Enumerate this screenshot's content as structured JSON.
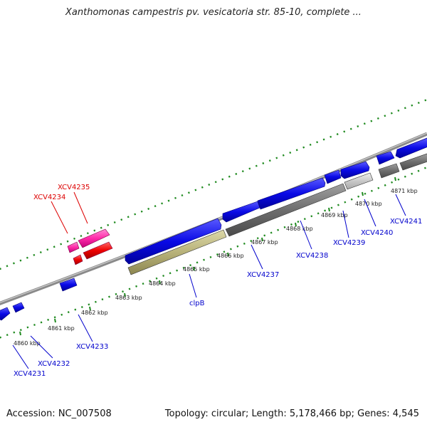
{
  "title": "Xanthomonas campestris pv. vesicatoria str. 85-10, complete ...",
  "footer": {
    "accession": "Accession: NC_007508",
    "summary": "Topology: circular; Length: 5,178,466 bp; Genes: 4,545"
  },
  "colors": {
    "forward_gene": "#0a0ae6",
    "reverse_gene": "#6e6e6e",
    "clpB_gene": "#b8b27a",
    "pseudo_gene": "#c8c8c8",
    "rna_magenta": "#ff2aa8",
    "rna_red": "#ee0000",
    "backbone": "#8a8a8a",
    "tick": "#1f8a1f",
    "label_blue": "#0000cc",
    "label_red": "#dd0000"
  },
  "scale": {
    "ticks": [
      {
        "label": "4860 kbp"
      },
      {
        "label": "4861 kbp"
      },
      {
        "label": "4862 kbp"
      },
      {
        "label": "4863 kbp"
      },
      {
        "label": "4864 kbp"
      },
      {
        "label": "4865 kbp"
      },
      {
        "label": "4866 kbp"
      },
      {
        "label": "4867 kbp"
      },
      {
        "label": "4868 kbp"
      },
      {
        "label": "4869 kbp"
      },
      {
        "label": "4870 kbp"
      },
      {
        "label": "4871 kbp"
      }
    ]
  },
  "genes": [
    {
      "label": "XCV4231",
      "kind": "blue"
    },
    {
      "label": "XCV4232",
      "kind": "blue"
    },
    {
      "label": "XCV4233",
      "kind": "blue"
    },
    {
      "label": "XCV4234",
      "kind": "red"
    },
    {
      "label": "XCV4235",
      "kind": "red"
    },
    {
      "label": "clpB",
      "kind": "blue"
    },
    {
      "label": "XCV4237",
      "kind": "blue"
    },
    {
      "label": "XCV4238",
      "kind": "blue"
    },
    {
      "label": "XCV4239",
      "kind": "blue"
    },
    {
      "label": "XCV4240",
      "kind": "blue"
    },
    {
      "label": "XCV4241",
      "kind": "blue"
    }
  ]
}
